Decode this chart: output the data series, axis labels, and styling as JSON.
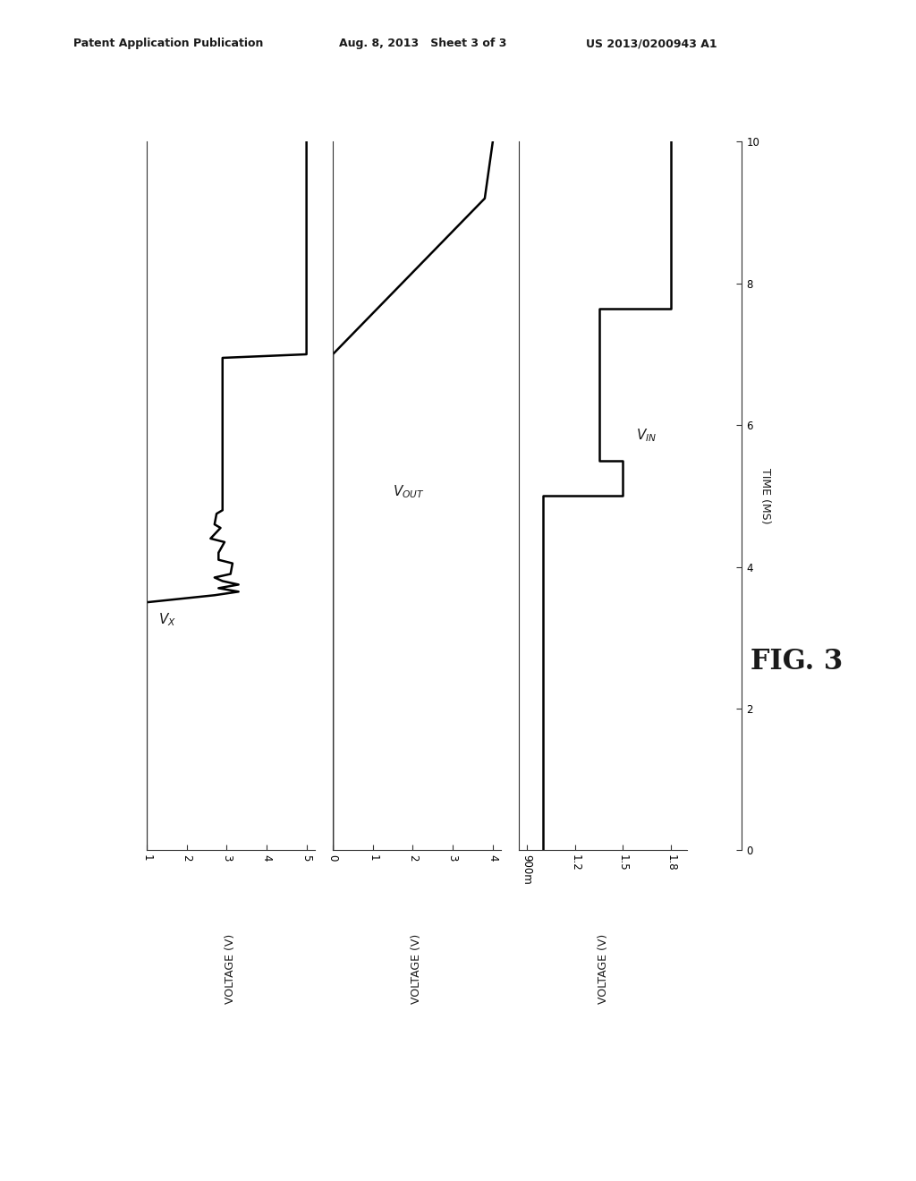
{
  "header_left": "Patent Application Publication",
  "header_mid": "Aug. 8, 2013   Sheet 3 of 3",
  "header_right": "US 2013/0200943 A1",
  "fig_label": "FIG. 3",
  "time_label": "TIME (MS)",
  "time_ticks": [
    0.0,
    2.0,
    4.0,
    6.0,
    8.0,
    10.0
  ],
  "time_lim": [
    0.0,
    10.0
  ],
  "subplot1": {
    "label_text": "V_X",
    "label_sub": "X",
    "xlabel": "VOLTAGE (V)",
    "xticks": [
      1.0,
      2.0,
      3.0,
      4.0,
      5.0
    ],
    "xlim": [
      1.0,
      5.2
    ],
    "time": [
      0.0,
      3.5,
      3.6,
      3.65,
      3.7,
      3.75,
      3.8,
      3.85,
      3.9,
      4.05,
      4.1,
      4.2,
      4.35,
      4.4,
      4.55,
      4.6,
      4.75,
      4.8,
      5.1,
      5.5,
      6.95,
      7.0,
      10.0
    ],
    "voltage": [
      1.0,
      1.0,
      2.7,
      3.3,
      2.8,
      3.3,
      2.9,
      2.7,
      3.1,
      3.15,
      2.8,
      2.8,
      2.95,
      2.6,
      2.85,
      2.7,
      2.75,
      2.9,
      2.9,
      2.9,
      2.9,
      5.0,
      5.0
    ],
    "label_t": 3.2,
    "label_v": 1.3
  },
  "subplot2": {
    "label_text": "V_OUT",
    "label_sub": "OUT",
    "xlabel": "VOLTAGE (V)",
    "xticks": [
      0.0,
      1.0,
      2.0,
      3.0,
      4.0
    ],
    "xlim": [
      0.0,
      4.2
    ],
    "time": [
      0.0,
      7.0,
      9.2,
      10.0
    ],
    "voltage": [
      0.0,
      0.0,
      3.8,
      4.0
    ],
    "label_t": 5.0,
    "label_v": 1.5
  },
  "subplot3": {
    "label_text": "V_IN",
    "label_sub": "IN",
    "xlabel": "VOLTAGE (V)",
    "xticks": [
      0.9,
      1.2,
      1.5,
      1.8
    ],
    "xticklabels": [
      "900m",
      "1.2",
      "1.5",
      "1.8"
    ],
    "xlim": [
      0.85,
      1.9
    ],
    "time": [
      0.0,
      5.0,
      5.0,
      5.5,
      5.5,
      7.65,
      7.65,
      10.0
    ],
    "voltage": [
      1.0,
      1.0,
      1.5,
      1.5,
      1.35,
      1.35,
      1.8,
      1.8
    ],
    "label_t": 5.8,
    "label_v": 1.58
  },
  "background_color": "#ffffff",
  "line_color": "#000000",
  "line_width": 1.8,
  "font_color": "#1a1a1a"
}
